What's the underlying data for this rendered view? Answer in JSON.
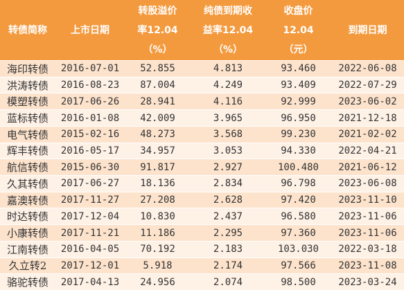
{
  "table": {
    "header": [
      [
        "转债简称"
      ],
      [
        "上市日期"
      ],
      [
        "转股溢价",
        "率12.04",
        "（%）"
      ],
      [
        "纯债到期收",
        "益率12.04",
        "（%）"
      ],
      [
        "收盘价",
        "12.04",
        "（元）"
      ],
      [
        "到期日期"
      ]
    ],
    "rows": [
      [
        "海印转债",
        "2016-07-01",
        "52.855",
        "4.813",
        "93.460",
        "2022-06-08"
      ],
      [
        "洪涛转债",
        "2016-08-23",
        "87.004",
        "4.249",
        "93.409",
        "2022-07-29"
      ],
      [
        "模塑转债",
        "2017-06-26",
        "28.941",
        "4.116",
        "92.999",
        "2023-06-02"
      ],
      [
        "蓝标转债",
        "2016-01-08",
        "42.009",
        "3.965",
        "96.950",
        "2021-12-18"
      ],
      [
        "电气转债",
        "2015-02-16",
        "48.273",
        "3.568",
        "99.230",
        "2021-02-02"
      ],
      [
        "辉丰转债",
        "2016-05-17",
        "34.957",
        "3.053",
        "94.330",
        "2022-04-21"
      ],
      [
        "航信转债",
        "2015-06-30",
        "91.817",
        "2.927",
        "100.480",
        "2021-06-12"
      ],
      [
        "久其转债",
        "2017-06-27",
        "18.136",
        "2.834",
        "96.798",
        "2023-06-08"
      ],
      [
        "嘉澳转债",
        "2017-11-27",
        "27.208",
        "2.628",
        "97.420",
        "2023-11-10"
      ],
      [
        "时达转债",
        "2017-12-04",
        "10.830",
        "2.437",
        "96.580",
        "2023-11-06"
      ],
      [
        "小康转债",
        "2017-11-21",
        "11.186",
        "2.295",
        "97.360",
        "2023-11-06"
      ],
      [
        "江南转债",
        "2016-04-05",
        "70.192",
        "2.183",
        "103.030",
        "2022-03-18"
      ],
      [
        "久立转2",
        "2017-12-01",
        "5.918",
        "2.174",
        "97.566",
        "2023-11-08"
      ],
      [
        "骆驼转债",
        "2017-04-13",
        "24.956",
        "2.074",
        "98.500",
        "2023-03-24"
      ]
    ]
  },
  "colors": {
    "header_bg": "#f49a3e",
    "header_text": "#ffffff",
    "row_odd": "#fde3cc",
    "row_even": "#fef1e6",
    "cell_text": "#333333"
  }
}
